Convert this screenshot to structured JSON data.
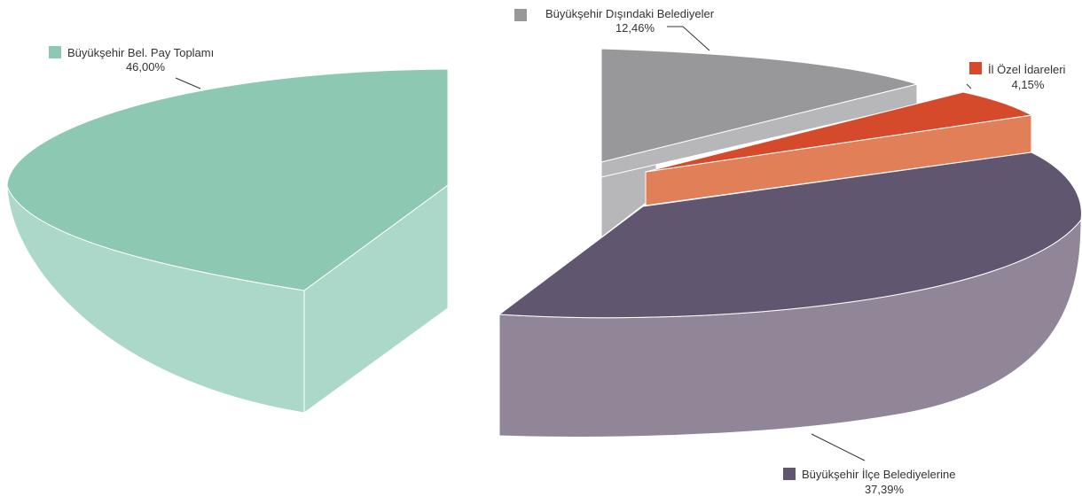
{
  "chart_data": {
    "type": "pie",
    "title": "",
    "slices": [
      {
        "label": "Büyükşehir Bel. Pay Toplamı",
        "value": 46.0,
        "value_label": "46,00%",
        "color": "#8cc8b2",
        "side_color": "#acd8c9"
      },
      {
        "label": "Büyükşehir Dışındaki Belediyeler",
        "value": 12.46,
        "value_label": "12,46%",
        "color": "#98989b",
        "side_color": "#b7b7ba"
      },
      {
        "label": "İl Özel İdareleri",
        "value": 4.15,
        "value_label": "4,15%",
        "color": "#d54a2a",
        "side_color": "#e07f58"
      },
      {
        "label": "Büyükşehir İlçe Belediyelerine",
        "value": 37.39,
        "value_label": "37,39%",
        "color": "#61566f",
        "side_color": "#918698"
      }
    ],
    "legend": "labels beside slices",
    "exploded": true,
    "three_d": true
  }
}
